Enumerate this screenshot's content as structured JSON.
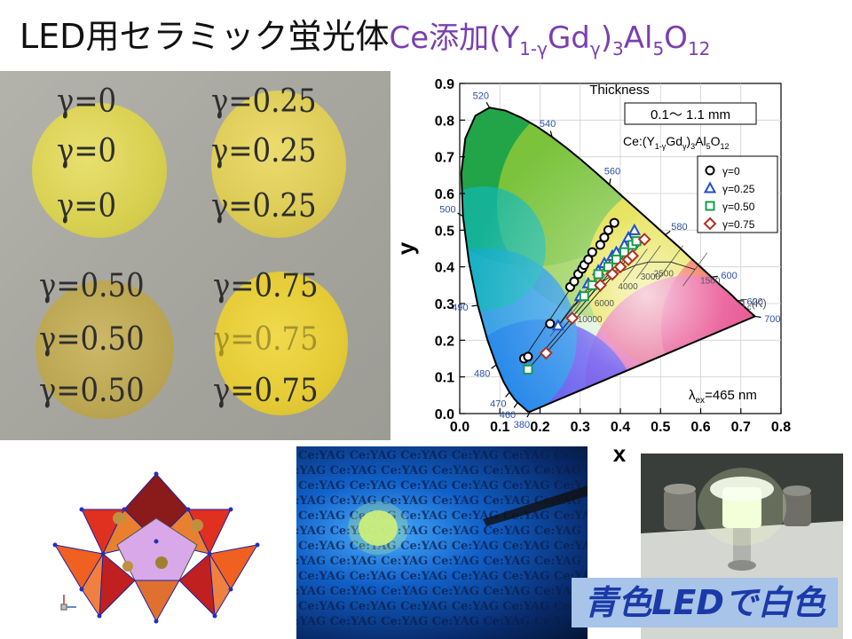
{
  "slide": {
    "title_main": "LED用セラミック蛍光体",
    "title_formula": {
      "pre": "Ce添加(Y",
      "sub1": "1-γ",
      "mid": "Gd",
      "sub2": "γ",
      "post": ")",
      "sub3": "3",
      "al": "Al",
      "sub4": "5",
      "o": "O",
      "sub5": "12"
    },
    "caption": "青色LEDで白色"
  },
  "discs_photo": {
    "labels": {
      "g0": "γ=0",
      "g025": "γ=0.25",
      "g050": "γ=0.50",
      "g075": "γ=0.75"
    }
  },
  "yag_photo": {
    "text": "Ce:YAG"
  },
  "colors": {
    "title_accent": "#7a3fb0",
    "caption_bg": "#a8c4e8",
    "caption_text": "#1b3aa8",
    "series_g0": "#000000",
    "series_g025": "#1f4fd0",
    "series_g050": "#1a9a50",
    "series_g075": "#b03020"
  },
  "chart_data": {
    "type": "scatter",
    "title": "Thickness",
    "thickness_box": "0.1〜 1.1 mm",
    "composition": {
      "pre": "Ce:(Y",
      "s1": "1-γ",
      "mid": "Gd",
      "s2": "γ",
      "mid2": ")",
      "s3": "3",
      "al": "Al",
      "s4": "5",
      "o": "O",
      "s5": "12"
    },
    "xlabel": "x",
    "ylabel": "y",
    "xlim": [
      0,
      0.8
    ],
    "ylim": [
      0,
      0.9
    ],
    "xticks": [
      "0.0",
      "0.1",
      "0.2",
      "0.3",
      "0.4",
      "0.5",
      "0.6",
      "0.7",
      "0.8"
    ],
    "yticks": [
      "0.0",
      "0.1",
      "0.2",
      "0.3",
      "0.4",
      "0.5",
      "0.6",
      "0.7",
      "0.8",
      "0.9"
    ],
    "excitation": {
      "lambda": "λ",
      "sub": "ex",
      "value": "=465 nm"
    },
    "locus_label": "T",
    "locus_label_sub": "c",
    "locus_label_unit": "(K)",
    "wavelength_labels": [
      {
        "text": "380",
        "x": 0.175,
        "y": 0.005
      },
      {
        "text": "460",
        "x": 0.144,
        "y": 0.03
      },
      {
        "text": "470",
        "x": 0.124,
        "y": 0.058
      },
      {
        "text": "480",
        "x": 0.091,
        "y": 0.133
      },
      {
        "text": "490",
        "x": 0.045,
        "y": 0.295
      },
      {
        "text": "500",
        "x": 0.008,
        "y": 0.538
      },
      {
        "text": "520",
        "x": 0.074,
        "y": 0.834
      },
      {
        "text": "540",
        "x": 0.23,
        "y": 0.754
      },
      {
        "text": "560",
        "x": 0.373,
        "y": 0.624
      },
      {
        "text": "580",
        "x": 0.512,
        "y": 0.487
      },
      {
        "text": "600",
        "x": 0.627,
        "y": 0.372
      },
      {
        "text": "620",
        "x": 0.691,
        "y": 0.308
      },
      {
        "text": "700",
        "x": 0.735,
        "y": 0.265
      }
    ],
    "cct_labels": [
      {
        "text": "2500",
        "x": 0.47,
        "y": 0.413
      },
      {
        "text": "1500",
        "x": 0.586,
        "y": 0.393
      },
      {
        "text": "3000",
        "x": 0.437,
        "y": 0.404
      },
      {
        "text": "4000",
        "x": 0.381,
        "y": 0.377
      },
      {
        "text": "6000",
        "x": 0.322,
        "y": 0.332
      },
      {
        "text": "10000",
        "x": 0.28,
        "y": 0.288
      }
    ],
    "legend_position": "top-right",
    "series": [
      {
        "name": "γ=0",
        "marker": "circle",
        "x": [
          0.16,
          0.17,
          0.225,
          0.275,
          0.285,
          0.295,
          0.305,
          0.31,
          0.32,
          0.33,
          0.35,
          0.36,
          0.37,
          0.385
        ],
        "y": [
          0.15,
          0.155,
          0.245,
          0.345,
          0.36,
          0.38,
          0.395,
          0.405,
          0.42,
          0.44,
          0.46,
          0.48,
          0.5,
          0.52
        ]
      },
      {
        "name": "γ=0.25",
        "marker": "triangle",
        "x": [
          0.245,
          0.3,
          0.32,
          0.345,
          0.36,
          0.38,
          0.39,
          0.41,
          0.42,
          0.435
        ],
        "y": [
          0.24,
          0.32,
          0.355,
          0.39,
          0.41,
          0.43,
          0.44,
          0.46,
          0.48,
          0.5
        ]
      },
      {
        "name": "γ=0.50",
        "marker": "square",
        "x": [
          0.17,
          0.31,
          0.33,
          0.345,
          0.37,
          0.39,
          0.41,
          0.43,
          0.44
        ],
        "y": [
          0.12,
          0.32,
          0.35,
          0.38,
          0.4,
          0.42,
          0.44,
          0.46,
          0.47
        ]
      },
      {
        "name": "γ=0.75",
        "marker": "diamond",
        "x": [
          0.215,
          0.28,
          0.35,
          0.38,
          0.4,
          0.42,
          0.43,
          0.46
        ],
        "y": [
          0.165,
          0.26,
          0.35,
          0.38,
          0.4,
          0.42,
          0.43,
          0.475
        ]
      }
    ]
  }
}
